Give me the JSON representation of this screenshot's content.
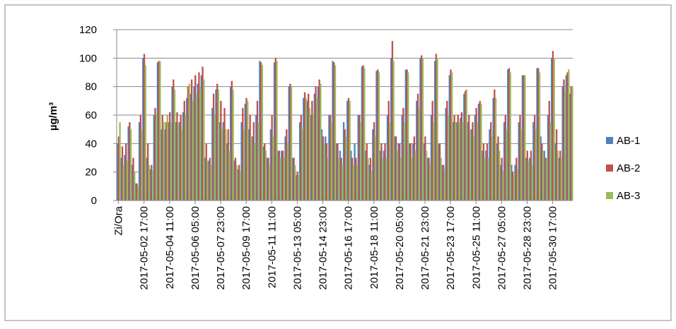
{
  "chart_data": {
    "type": "bar",
    "y_label": "µg/m³",
    "categories": [
      "Zi/Ora",
      null,
      null,
      null,
      null,
      null,
      null,
      "2017-05-02 17:00",
      null,
      null,
      null,
      null,
      null,
      null,
      "2017-05-04 11:00",
      null,
      null,
      null,
      null,
      null,
      null,
      "2017-05-06 05:00",
      null,
      null,
      null,
      null,
      null,
      null,
      "2017-05-07 23:00",
      null,
      null,
      null,
      null,
      null,
      null,
      "2017-05-09 17:00",
      null,
      null,
      null,
      null,
      null,
      null,
      "2017-05-11 11:00",
      null,
      null,
      null,
      null,
      null,
      null,
      "2017-05-13 05:00",
      null,
      null,
      null,
      null,
      null,
      null,
      "2017-05-14 23:00",
      null,
      null,
      null,
      null,
      null,
      null,
      "2017-05-16 17:00",
      null,
      null,
      null,
      null,
      null,
      null,
      "2017-05-18 11:00",
      null,
      null,
      null,
      null,
      null,
      null,
      "2017-05-20 05:00",
      null,
      null,
      null,
      null,
      null,
      null,
      "2017-05-21 23:00",
      null,
      null,
      null,
      null,
      null,
      null,
      "2017-05-23 17:00",
      null,
      null,
      null,
      null,
      null,
      null,
      "2017-05-25 11:00",
      null,
      null,
      null,
      null,
      null,
      null,
      "2017-05-27 05:00",
      null,
      null,
      null,
      null,
      null,
      null,
      "2017-05-28 23:00",
      null,
      null,
      null,
      null,
      null,
      null,
      "2017-05-30 17:00",
      null,
      null,
      null,
      null,
      null
    ],
    "series": [
      {
        "name": "AB-1",
        "color": "#4f81bd",
        "values": [
          40,
          30,
          32,
          52,
          25,
          12,
          55,
          100,
          30,
          22,
          60,
          97,
          50,
          50,
          55,
          80,
          55,
          55,
          62,
          72,
          75,
          80,
          82,
          88,
          30,
          28,
          65,
          78,
          55,
          55,
          40,
          80,
          28,
          22,
          55,
          68,
          50,
          45,
          60,
          98,
          38,
          30,
          50,
          97,
          35,
          35,
          45,
          80,
          30,
          18,
          55,
          72,
          70,
          60,
          75,
          80,
          50,
          45,
          60,
          98,
          40,
          35,
          55,
          70,
          35,
          40,
          60,
          94,
          35,
          25,
          50,
          91,
          35,
          35,
          60,
          100,
          45,
          40,
          60,
          92,
          40,
          40,
          70,
          100,
          40,
          30,
          60,
          98,
          40,
          25,
          65,
          88,
          55,
          55,
          58,
          75,
          55,
          50,
          60,
          68,
          35,
          35,
          50,
          72,
          40,
          25,
          55,
          92,
          25,
          25,
          55,
          88,
          30,
          30,
          55,
          93,
          45,
          35,
          60,
          100,
          40,
          30,
          80,
          88,
          75
        ]
      },
      {
        "name": "AB-2",
        "color": "#c0504d",
        "values": [
          45,
          38,
          40,
          55,
          30,
          12,
          60,
          103,
          40,
          25,
          65,
          98,
          60,
          55,
          62,
          85,
          62,
          60,
          70,
          80,
          85,
          88,
          90,
          94,
          40,
          30,
          75,
          82,
          70,
          65,
          50,
          84,
          30,
          25,
          65,
          72,
          60,
          55,
          70,
          97,
          40,
          30,
          60,
          100,
          35,
          35,
          50,
          82,
          30,
          20,
          60,
          76,
          75,
          70,
          80,
          85,
          45,
          40,
          60,
          97,
          40,
          30,
          50,
          72,
          30,
          30,
          60,
          95,
          40,
          30,
          55,
          92,
          40,
          40,
          70,
          112,
          45,
          40,
          65,
          92,
          40,
          45,
          75,
          102,
          45,
          30,
          70,
          103,
          40,
          25,
          70,
          92,
          60,
          60,
          62,
          77,
          60,
          55,
          65,
          70,
          40,
          40,
          55,
          78,
          45,
          30,
          60,
          93,
          20,
          30,
          60,
          88,
          35,
          35,
          60,
          93,
          40,
          30,
          70,
          105,
          50,
          35,
          85,
          90,
          80
        ]
      },
      {
        "name": "AB-3",
        "color": "#9bbb59",
        "values": [
          55,
          25,
          28,
          50,
          20,
          10,
          50,
          95,
          25,
          20,
          60,
          98,
          55,
          60,
          55,
          78,
          55,
          50,
          60,
          82,
          70,
          75,
          80,
          85,
          28,
          25,
          60,
          78,
          50,
          50,
          35,
          78,
          25,
          20,
          50,
          70,
          45,
          40,
          55,
          95,
          35,
          25,
          45,
          98,
          30,
          30,
          40,
          80,
          25,
          18,
          50,
          72,
          65,
          60,
          72,
          82,
          40,
          30,
          55,
          95,
          30,
          25,
          45,
          70,
          25,
          25,
          55,
          93,
          30,
          20,
          45,
          90,
          30,
          30,
          55,
          98,
          35,
          30,
          55,
          90,
          30,
          35,
          65,
          100,
          35,
          25,
          55,
          100,
          30,
          22,
          60,
          90,
          55,
          55,
          55,
          78,
          50,
          45,
          55,
          68,
          30,
          30,
          45,
          72,
          35,
          20,
          50,
          90,
          18,
          22,
          50,
          88,
          28,
          25,
          50,
          90,
          35,
          30,
          55,
          100,
          35,
          30,
          78,
          92,
          80
        ]
      }
    ],
    "ylim": [
      0,
      120
    ],
    "yticks": [
      0,
      20,
      40,
      60,
      80,
      100,
      120
    ],
    "grid": true,
    "legend": "right"
  }
}
